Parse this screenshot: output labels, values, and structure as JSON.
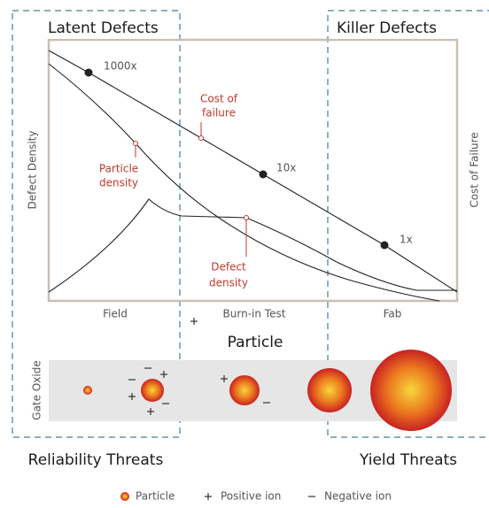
{
  "header": {
    "left_title": "Latent Defects",
    "right_title": "Killer Defects"
  },
  "curves": {
    "cost_of_failure": {
      "lines": [
        "Cost of",
        "failure"
      ]
    },
    "particle_density": {
      "lines": [
        "Particle",
        "density"
      ]
    },
    "defect_density": {
      "lines": [
        "Defect",
        "density"
      ]
    },
    "multipliers": [
      "1000x",
      "10x",
      "1x"
    ]
  },
  "axes": {
    "left": "Defect Density",
    "right": "Cost of Failure",
    "stages": [
      "Field",
      "Burn-in Test",
      "Fab"
    ]
  },
  "particle_row": {
    "title": "Particle",
    "band_label": "Gate Oxide"
  },
  "footer": {
    "left": "Reliability Threats",
    "right": "Yield Threats"
  },
  "legend": [
    "Particle",
    "Positive ion",
    "Negative ion"
  ]
}
